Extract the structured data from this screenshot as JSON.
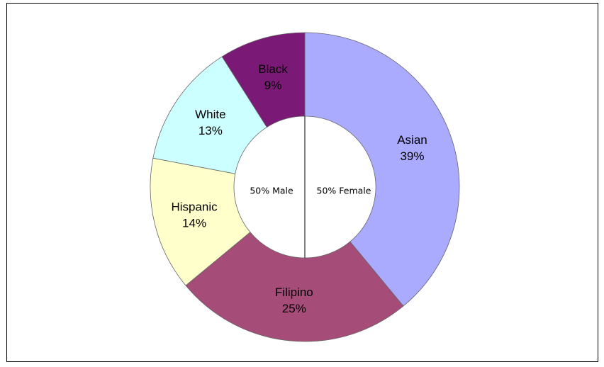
{
  "chart_data": {
    "type": "donut",
    "categories": [
      "Asian",
      "Filipino",
      "Hispanic",
      "White",
      "Black"
    ],
    "values": [
      39,
      25,
      14,
      13,
      9
    ],
    "value_labels": [
      "39%",
      "25%",
      "14%",
      "13%",
      "9%"
    ],
    "colors": [
      "#aaaaff",
      "#a64c78",
      "#ffffcc",
      "#ccffff",
      "#7a1a76"
    ],
    "annotations": [
      "50% Male",
      "50% Female"
    ]
  }
}
